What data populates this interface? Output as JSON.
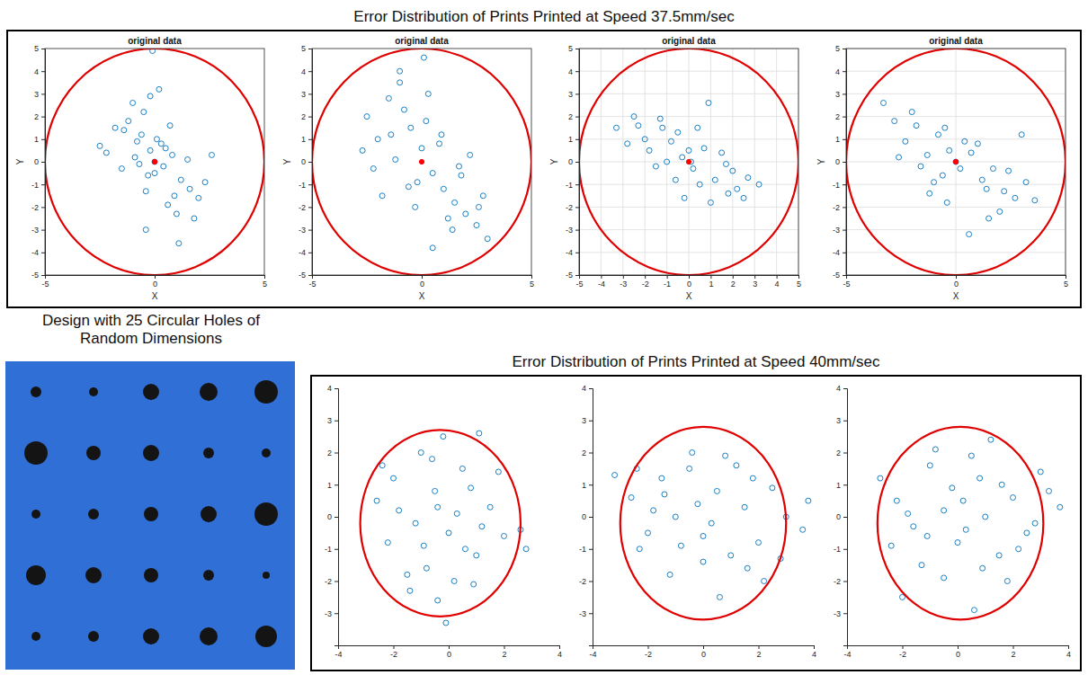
{
  "headings": {
    "top": "Error Distribution of Prints Printed at Speed 37.5mm/sec",
    "bottom": "Error Distribution of Prints Printed at Speed 40mm/sec",
    "image_caption": "Design with 25 Circular Holes of Random Dimensions"
  },
  "chart_data": [
    {
      "type": "scatter",
      "title": "original data",
      "xlabel": "X",
      "ylabel": "Y",
      "xlim": [
        -5,
        5
      ],
      "ylim": [
        -5,
        5
      ],
      "xticks": [
        -5,
        0,
        5
      ],
      "yticks": [
        -5,
        -4,
        -3,
        -2,
        -1,
        0,
        1,
        2,
        3,
        4,
        5
      ],
      "grid": false,
      "series": [
        {
          "type": "scatter",
          "color": "#0072bd",
          "marker": "open-circle",
          "x": [
            -1.8,
            -1.2,
            -0.8,
            -0.5,
            -0.2,
            0.1,
            0.4,
            0.8,
            1.2,
            1.6,
            2.0,
            -2.2,
            -1.5,
            -0.9,
            -0.3,
            0.3,
            0.9,
            1.5,
            2.3,
            -0.6,
            0.0,
            0.6,
            -1.0,
            1.0,
            -0.1,
            0.2,
            -0.4,
            0.5,
            -1.4,
            1.8,
            -0.7,
            0.7,
            -0.2,
            2.6,
            -2.5,
            -0.4,
            1.1,
            0.0
          ],
          "values": [
            1.5,
            1.8,
            0.9,
            2.2,
            0.5,
            1.0,
            -0.2,
            0.3,
            -0.8,
            -1.2,
            -1.6,
            0.4,
            -0.3,
            0.2,
            -0.6,
            0.8,
            -1.5,
            0.1,
            -0.9,
            1.2,
            -0.5,
            -1.9,
            2.6,
            -2.3,
            4.9,
            3.2,
            -1.3,
            0.6,
            1.4,
            -2.5,
            -0.1,
            1.6,
            2.9,
            0.3,
            0.7,
            -3.0,
            -3.6,
            0.0
          ]
        },
        {
          "type": "scatter",
          "color": "#ff0000",
          "marker": "dot",
          "x": [
            0
          ],
          "values": [
            0
          ]
        },
        {
          "type": "circle",
          "color": "#e00000",
          "x": [
            0
          ],
          "values": [
            0
          ],
          "radius": [
            5
          ]
        }
      ]
    },
    {
      "type": "scatter",
      "title": "original data",
      "xlabel": "X",
      "ylabel": "Y",
      "xlim": [
        -5,
        5
      ],
      "ylim": [
        -5,
        5
      ],
      "xticks": [
        -5,
        0,
        5
      ],
      "yticks": [
        -5,
        -4,
        -3,
        -2,
        -1,
        0,
        1,
        2,
        3,
        4,
        5
      ],
      "grid": false,
      "series": [
        {
          "type": "scatter",
          "color": "#0072bd",
          "marker": "open-circle",
          "x": [
            -2.5,
            -2.0,
            -1.5,
            -1.0,
            -0.5,
            0.0,
            0.5,
            1.0,
            1.5,
            2.0,
            2.5,
            3.0,
            -2.2,
            -1.2,
            -0.2,
            0.8,
            1.8,
            2.8,
            -1.8,
            -0.8,
            0.2,
            1.2,
            2.2,
            -1.0,
            0.1,
            0.5,
            -0.3,
            1.4,
            0.9,
            -1.4,
            2.6,
            -0.6,
            0.3,
            1.7,
            -2.7
          ],
          "values": [
            2.0,
            1.0,
            2.8,
            3.5,
            1.5,
            0.6,
            -0.5,
            -1.2,
            -1.8,
            -2.3,
            -2.8,
            -3.4,
            -0.3,
            0.1,
            -0.9,
            0.8,
            -0.6,
            -1.5,
            -1.5,
            2.3,
            1.8,
            -2.5,
            0.3,
            4.0,
            4.6,
            -3.8,
            -2.0,
            -3.0,
            1.2,
            1.2,
            -2.0,
            -1.1,
            3.0,
            -0.2,
            0.5
          ]
        },
        {
          "type": "scatter",
          "color": "#ff0000",
          "marker": "dot",
          "x": [
            0
          ],
          "values": [
            0
          ]
        },
        {
          "type": "circle",
          "color": "#e00000",
          "x": [
            0
          ],
          "values": [
            0
          ],
          "radius": [
            5
          ]
        }
      ]
    },
    {
      "type": "scatter",
      "title": "original data",
      "xlabel": "X",
      "ylabel": "Y",
      "xlim": [
        -5,
        5
      ],
      "ylim": [
        -5,
        5
      ],
      "xticks": [
        -5,
        -4,
        -3,
        -2,
        -1,
        0,
        1,
        2,
        3,
        4,
        5
      ],
      "yticks": [
        -5,
        -4,
        -3,
        -2,
        -1,
        0,
        1,
        2,
        3,
        4,
        5
      ],
      "grid": true,
      "series": [
        {
          "type": "scatter",
          "color": "#0072bd",
          "marker": "open-circle",
          "x": [
            -3.3,
            -2.8,
            -2.3,
            -1.8,
            -1.3,
            -0.8,
            -0.3,
            0.2,
            0.7,
            1.2,
            1.7,
            2.2,
            2.7,
            3.2,
            -2.5,
            -1.5,
            -0.5,
            0.5,
            1.5,
            2.5,
            -2.0,
            -1.0,
            0.0,
            1.0,
            2.0,
            -0.6,
            0.4,
            0.9,
            -1.2,
            1.8,
            0.1,
            -0.2
          ],
          "values": [
            1.5,
            0.8,
            1.6,
            0.5,
            1.9,
            0.9,
            0.2,
            -0.3,
            0.6,
            -0.8,
            -0.1,
            -1.2,
            -0.7,
            -1.0,
            2.0,
            -0.2,
            1.3,
            -1.0,
            0.4,
            -1.6,
            1.0,
            0.0,
            0.5,
            -1.8,
            -0.4,
            -0.8,
            1.5,
            2.6,
            1.5,
            -1.4,
            0.0,
            -1.6
          ]
        },
        {
          "type": "scatter",
          "color": "#ff0000",
          "marker": "dot",
          "x": [
            0
          ],
          "values": [
            0
          ]
        },
        {
          "type": "circle",
          "color": "#e00000",
          "x": [
            0
          ],
          "values": [
            0
          ],
          "radius": [
            5
          ]
        }
      ]
    },
    {
      "type": "scatter",
      "title": "original data",
      "xlabel": "X",
      "ylabel": "Y",
      "xlim": [
        -5,
        5
      ],
      "ylim": [
        -5,
        5
      ],
      "xticks": [
        -5,
        0,
        5
      ],
      "yticks": [
        -5,
        -4,
        -3,
        -2,
        -1,
        0,
        1,
        2,
        3,
        4,
        5
      ],
      "grid": true,
      "series": [
        {
          "type": "scatter",
          "color": "#0072bd",
          "marker": "open-circle",
          "x": [
            -3.3,
            -2.8,
            -2.3,
            -1.8,
            -1.3,
            -0.8,
            -0.3,
            0.2,
            0.7,
            1.2,
            1.7,
            2.2,
            2.7,
            3.2,
            -2.6,
            -1.6,
            -0.6,
            0.4,
            1.4,
            2.4,
            3.6,
            -2.0,
            -1.0,
            0.0,
            1.0,
            2.0,
            -0.4,
            0.6,
            -0.5,
            1.5,
            3.0,
            -1.2
          ],
          "values": [
            2.6,
            1.8,
            0.9,
            1.6,
            0.3,
            1.2,
            0.5,
            -0.3,
            0.4,
            -0.8,
            -0.3,
            -1.3,
            -1.6,
            -0.9,
            0.2,
            -0.2,
            -0.6,
            0.9,
            -1.2,
            -0.4,
            -1.7,
            2.2,
            -0.9,
            0.0,
            0.8,
            -2.2,
            -1.8,
            -3.2,
            1.5,
            -2.5,
            1.2,
            -1.4
          ]
        },
        {
          "type": "scatter",
          "color": "#ff0000",
          "marker": "dot",
          "x": [
            0
          ],
          "values": [
            0
          ]
        },
        {
          "type": "circle",
          "color": "#e00000",
          "x": [
            0
          ],
          "values": [
            0
          ],
          "radius": [
            5
          ]
        }
      ]
    },
    {
      "type": "scatter",
      "xlim": [
        -4,
        4
      ],
      "ylim": [
        -4,
        4
      ],
      "xticks": [
        -4,
        -2,
        0,
        2,
        4
      ],
      "yticks": [
        -3,
        -2,
        -1,
        0,
        1,
        2,
        3,
        4
      ],
      "grid": false,
      "series": [
        {
          "type": "scatter",
          "color": "#0072bd",
          "marker": "open-circle",
          "x": [
            -2.6,
            -2.0,
            -1.5,
            -1.0,
            -0.5,
            0.0,
            0.5,
            1.0,
            1.5,
            2.0,
            2.6,
            -2.2,
            -1.2,
            -0.2,
            0.8,
            1.8,
            -1.8,
            -0.8,
            0.2,
            1.2,
            -0.4,
            -0.6,
            0.3,
            -1.4,
            1.1,
            -0.9,
            0.6,
            -0.1,
            2.8,
            -0.4,
            0.9,
            -2.4
          ],
          "values": [
            0.5,
            1.2,
            -1.8,
            2.0,
            0.8,
            -0.5,
            1.5,
            -1.2,
            0.3,
            -0.6,
            -0.4,
            -0.8,
            -0.2,
            2.5,
            0.9,
            1.4,
            0.2,
            -1.6,
            -2.0,
            -0.3,
            -2.6,
            1.8,
            0.1,
            -2.3,
            2.6,
            -0.9,
            -1.0,
            -3.3,
            -1.0,
            0.3,
            -2.1,
            1.6
          ]
        },
        {
          "type": "circle",
          "color": "#e00000",
          "x": [
            -0.3
          ],
          "values": [
            -0.2
          ],
          "radius": [
            2.9
          ]
        }
      ]
    },
    {
      "type": "scatter",
      "xlim": [
        -4,
        4
      ],
      "ylim": [
        -4,
        4
      ],
      "xticks": [
        -4,
        -2,
        0,
        2,
        4
      ],
      "yticks": [
        -3,
        -2,
        -1,
        0,
        1,
        2,
        3,
        4
      ],
      "grid": false,
      "series": [
        {
          "type": "scatter",
          "color": "#0072bd",
          "marker": "open-circle",
          "x": [
            -3.2,
            -2.6,
            -2.0,
            -1.5,
            -1.0,
            -0.5,
            0.0,
            0.5,
            1.0,
            1.5,
            2.0,
            2.5,
            3.0,
            3.6,
            -2.3,
            -1.2,
            -0.2,
            0.8,
            1.8,
            2.8,
            -1.8,
            -0.8,
            0.3,
            1.2,
            2.2,
            -0.4,
            0.6,
            -1.4,
            1.6,
            3.8,
            -2.4,
            0.0
          ],
          "values": [
            1.3,
            0.6,
            -0.5,
            1.2,
            0.0,
            1.5,
            -0.6,
            0.8,
            -1.2,
            0.3,
            -0.8,
            0.9,
            0.0,
            -0.4,
            -1.0,
            -1.8,
            0.4,
            1.9,
            1.2,
            -1.3,
            0.2,
            -0.9,
            -0.2,
            1.6,
            -2.0,
            2.0,
            -2.5,
            0.7,
            -1.6,
            0.5,
            1.5,
            -1.4
          ]
        },
        {
          "type": "circle",
          "color": "#e00000",
          "x": [
            0.0
          ],
          "values": [
            -0.2
          ],
          "radius": [
            3.0
          ]
        }
      ]
    },
    {
      "type": "scatter",
      "xlim": [
        -4,
        4
      ],
      "ylim": [
        -4,
        4
      ],
      "xticks": [
        -4,
        -2,
        0,
        2,
        4
      ],
      "yticks": [
        -3,
        -2,
        -1,
        0,
        1,
        2,
        3,
        4
      ],
      "grid": false,
      "series": [
        {
          "type": "scatter",
          "color": "#0072bd",
          "marker": "open-circle",
          "x": [
            -2.8,
            -2.2,
            -1.6,
            -1.0,
            -0.5,
            0.0,
            0.5,
            1.0,
            1.5,
            2.0,
            2.5,
            3.0,
            3.7,
            -2.4,
            -1.3,
            -0.2,
            0.8,
            1.8,
            2.8,
            -1.8,
            -0.8,
            0.3,
            1.2,
            2.2,
            -0.5,
            0.6,
            1.6,
            -1.1,
            0.9,
            3.3,
            -2.0,
            0.2
          ],
          "values": [
            1.2,
            0.5,
            -0.3,
            1.6,
            0.2,
            -0.8,
            1.9,
            0.0,
            -1.2,
            0.6,
            -0.5,
            1.4,
            0.3,
            -0.9,
            -1.5,
            0.9,
            1.2,
            -2.0,
            -0.2,
            0.1,
            2.1,
            -0.4,
            2.4,
            -1.0,
            -1.9,
            -2.9,
            1.0,
            -0.6,
            -1.6,
            0.8,
            -2.5,
            0.5
          ]
        },
        {
          "type": "circle",
          "color": "#e00000",
          "x": [
            0.1
          ],
          "values": [
            -0.2
          ],
          "radius": [
            3.0
          ]
        }
      ]
    }
  ]
}
